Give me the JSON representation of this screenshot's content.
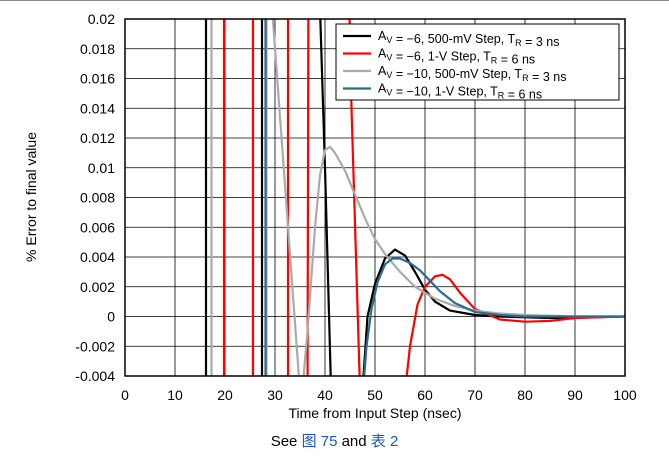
{
  "chart_data": {
    "type": "line",
    "title": "",
    "xlabel": "Time from Input Step (nsec)",
    "ylabel": "% Error to final value",
    "xlim": [
      0,
      100
    ],
    "ylim": [
      -0.004,
      0.02
    ],
    "x_ticks": [
      0,
      10,
      20,
      30,
      40,
      50,
      60,
      70,
      80,
      90,
      100
    ],
    "y_ticks": [
      "0.02",
      "0.018",
      "0.016",
      "0.014",
      "0.012",
      "0.01",
      "0.008",
      "0.006",
      "0.004",
      "0.002",
      "0",
      "-0.002",
      "-0.004"
    ],
    "grid": true,
    "legend_position": "top-right",
    "series": [
      {
        "name": "AV = −6, 500-mV Step, TR = 3 ns",
        "legend": {
          "a": "A",
          "a_sub": "V",
          "mid": " = −6, 500-mV Step, T",
          "t_sub": "R",
          "end": " = 3 ns"
        },
        "color": "#000000",
        "points": [
          [
            16.2,
            0.025
          ],
          [
            16.2,
            -0.006
          ],
          [
            27.4,
            -0.006
          ],
          [
            27.4,
            0.025
          ],
          [
            38.6,
            0.025
          ],
          [
            40.0,
            0.01
          ],
          [
            41.3,
            -0.006
          ],
          [
            47.3,
            -0.006
          ],
          [
            48.5,
            0.0
          ],
          [
            50,
            0.0022
          ],
          [
            52,
            0.0039
          ],
          [
            54,
            0.0045
          ],
          [
            56,
            0.0041
          ],
          [
            58,
            0.003
          ],
          [
            60,
            0.0018
          ],
          [
            62,
            0.001
          ],
          [
            65,
            0.0004
          ],
          [
            70,
            0.0001
          ],
          [
            75,
            0.0
          ],
          [
            85,
            -0.0001
          ],
          [
            100,
            0.0
          ]
        ]
      },
      {
        "name": "AV = −6, 1-V Step, TR = 6 ns",
        "legend": {
          "a": "A",
          "a_sub": "V",
          "mid": " = −6, 1-V Step, T",
          "t_sub": "R",
          "end": " = 6 ns"
        },
        "color": "#ff0000",
        "points": [
          [
            19.8,
            0.025
          ],
          [
            19.8,
            -0.006
          ],
          [
            25.6,
            -0.006
          ],
          [
            25.6,
            0.025
          ],
          [
            32.6,
            0.025
          ],
          [
            32.6,
            -0.006
          ],
          [
            36.5,
            -0.006
          ],
          [
            36.7,
            0.025
          ],
          [
            44.6,
            0.025
          ],
          [
            45.3,
            0.014
          ],
          [
            46.2,
            0.004
          ],
          [
            47.1,
            -0.006
          ],
          [
            55.7,
            -0.006
          ],
          [
            57,
            -0.002
          ],
          [
            58.5,
            0.0008
          ],
          [
            60,
            0.002
          ],
          [
            62,
            0.0027
          ],
          [
            63.5,
            0.0028
          ],
          [
            65,
            0.0025
          ],
          [
            67,
            0.0016
          ],
          [
            70,
            0.0005
          ],
          [
            75,
            -0.0002
          ],
          [
            80,
            -0.00035
          ],
          [
            85,
            -0.0003
          ],
          [
            90,
            -0.0001
          ],
          [
            100,
            0.0
          ]
        ]
      },
      {
        "name": "AV = −10, 500-mV Step, TR = 3 ns",
        "legend": {
          "a": "A",
          "a_sub": "V",
          "mid": " = −10, 500-mV Step, T",
          "t_sub": "R",
          "end": " = 3 ns"
        },
        "color": "#aaaaaa",
        "points": [
          [
            17.3,
            0.025
          ],
          [
            17.3,
            -0.006
          ],
          [
            28.3,
            -0.006
          ],
          [
            28.3,
            0.025
          ],
          [
            28.5,
            0.025
          ],
          [
            35.2,
            -0.006
          ],
          [
            36.5,
            -0.001
          ],
          [
            38,
            0.006
          ],
          [
            39,
            0.0095
          ],
          [
            40,
            0.0112
          ],
          [
            41,
            0.0114
          ],
          [
            42,
            0.011
          ],
          [
            44,
            0.0098
          ],
          [
            46,
            0.0082
          ],
          [
            48,
            0.0066
          ],
          [
            50,
            0.0052
          ],
          [
            52,
            0.0042
          ],
          [
            55,
            0.003
          ],
          [
            58,
            0.002
          ],
          [
            62,
            0.0012
          ],
          [
            66,
            0.0007
          ],
          [
            70,
            0.0004
          ],
          [
            75,
            0.0002
          ],
          [
            80,
            0.0001
          ],
          [
            90,
            0.0
          ],
          [
            100,
            0.0
          ]
        ]
      },
      {
        "name": "AV = −10, 1-V Step, TR = 6 ns",
        "legend": {
          "a": "A",
          "a_sub": "V",
          "mid": " = −10, 1-V Step, T",
          "t_sub": "R",
          "end": " = 6 ns"
        },
        "color": "#2e6a8c",
        "points": [
          [
            28.1,
            0.025
          ],
          [
            28.1,
            -0.006
          ],
          [
            47.4,
            -0.006
          ],
          [
            48.3,
            -0.002
          ],
          [
            49.3,
            0.0005
          ],
          [
            50.5,
            0.0023
          ],
          [
            52,
            0.0035
          ],
          [
            53.5,
            0.0039
          ],
          [
            55,
            0.0039
          ],
          [
            57,
            0.0036
          ],
          [
            59,
            0.0031
          ],
          [
            61,
            0.0024
          ],
          [
            63,
            0.0017
          ],
          [
            66,
            0.0009
          ],
          [
            70,
            0.0003
          ],
          [
            75,
            0.0001
          ],
          [
            80,
            0.0
          ],
          [
            100,
            0.0
          ]
        ]
      }
    ]
  },
  "caption": {
    "see": "See",
    "fig_ref": "图 75",
    "and": "and",
    "table_ref": "表 2"
  }
}
